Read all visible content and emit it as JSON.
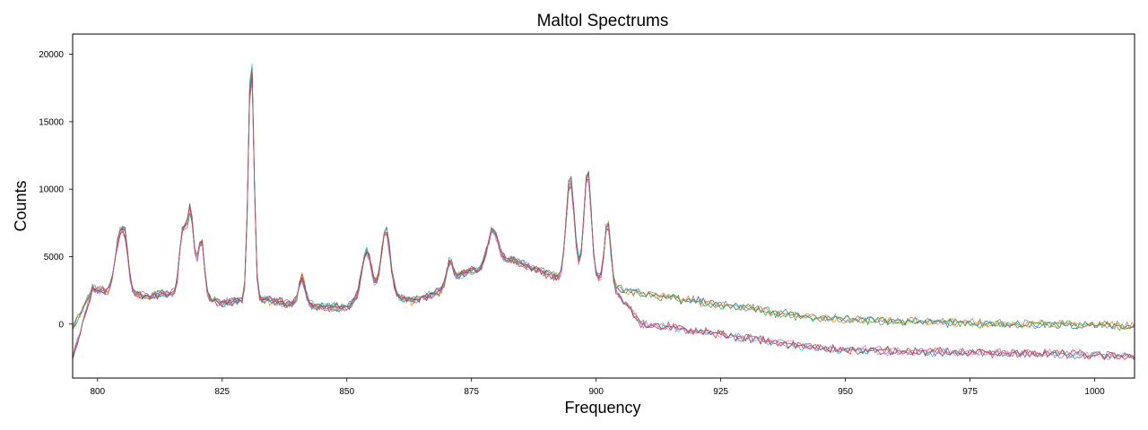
{
  "chart_data": {
    "type": "line",
    "title": "Maltol Spectrums",
    "xlabel": "Frequency",
    "ylabel": "Counts",
    "xlim": [
      795,
      1008
    ],
    "ylim": [
      -4000,
      21500
    ],
    "x_ticks": [
      800,
      825,
      850,
      875,
      900,
      925,
      950,
      975,
      1000
    ],
    "y_ticks": [
      0,
      5000,
      10000,
      15000,
      20000
    ],
    "grid": false,
    "legend": "none",
    "x_step": 0.5,
    "series": [
      {
        "color": "#1f77b4",
        "baseline_shift": 0,
        "peak_scale": 1.0,
        "seed": 11
      },
      {
        "color": "#ff7f0e",
        "baseline_shift": 0,
        "peak_scale": 1.02,
        "seed": 23
      },
      {
        "color": "#2ca02c",
        "baseline_shift": 0,
        "peak_scale": 0.96,
        "seed": 37
      },
      {
        "color": "#7f7f7f",
        "baseline_shift": 0,
        "peak_scale": 0.99,
        "seed": 41
      },
      {
        "color": "#17becf",
        "baseline_shift": -2200,
        "peak_scale": 1.03,
        "seed": 53
      },
      {
        "color": "#d62728",
        "baseline_shift": -2200,
        "peak_scale": 0.97,
        "seed": 67
      },
      {
        "color": "#9467bd",
        "baseline_shift": -2200,
        "peak_scale": 1.0,
        "seed": 79
      },
      {
        "color": "#e377c2",
        "baseline_shift": -2200,
        "peak_scale": 0.95,
        "seed": 83
      },
      {
        "color": "#8c564b",
        "baseline_shift": -2200,
        "peak_scale": 1.01,
        "seed": 97
      }
    ],
    "baseline_points": [
      [
        795,
        -200
      ],
      [
        799,
        2600
      ],
      [
        805,
        2400
      ],
      [
        810,
        2100
      ],
      [
        815,
        2300
      ],
      [
        820,
        2100
      ],
      [
        824,
        1600
      ],
      [
        828,
        1700
      ],
      [
        832,
        1900
      ],
      [
        840,
        1400
      ],
      [
        845,
        1300
      ],
      [
        850,
        1200
      ],
      [
        853,
        2200
      ],
      [
        858,
        2300
      ],
      [
        863,
        1700
      ],
      [
        868,
        2300
      ],
      [
        873,
        3700
      ],
      [
        878,
        4300
      ],
      [
        883,
        4800
      ],
      [
        888,
        4000
      ],
      [
        893,
        3400
      ],
      [
        897,
        3700
      ],
      [
        900,
        3400
      ],
      [
        905,
        2600
      ],
      [
        910,
        2200
      ],
      [
        920,
        1700
      ],
      [
        930,
        1200
      ],
      [
        940,
        600
      ],
      [
        950,
        300
      ],
      [
        960,
        200
      ],
      [
        970,
        100
      ],
      [
        980,
        0
      ],
      [
        990,
        0
      ],
      [
        1000,
        -100
      ],
      [
        1008,
        -200
      ]
    ],
    "peaks": [
      [
        804.2,
        3400,
        0.8
      ],
      [
        805.5,
        3600,
        0.7
      ],
      [
        817.0,
        4400,
        0.6
      ],
      [
        818.6,
        6400,
        0.7
      ],
      [
        820.8,
        4300,
        0.6
      ],
      [
        830.8,
        18100,
        0.55
      ],
      [
        841.0,
        2000,
        0.7
      ],
      [
        854.0,
        3200,
        0.9
      ],
      [
        857.8,
        4600,
        0.9
      ],
      [
        870.6,
        1700,
        0.6
      ],
      [
        879.3,
        2600,
        1.0
      ],
      [
        894.8,
        7300,
        0.8
      ],
      [
        898.3,
        7800,
        0.7
      ],
      [
        902.3,
        4600,
        0.6
      ]
    ]
  }
}
